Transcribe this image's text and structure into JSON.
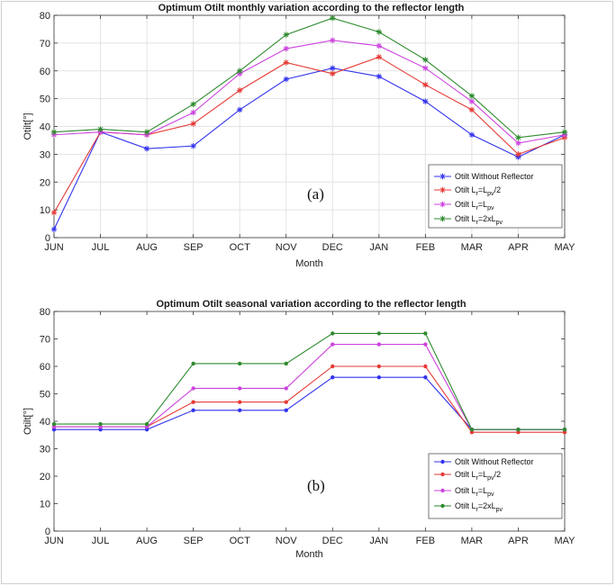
{
  "chart_data": [
    {
      "type": "line",
      "title": "Optimum Otilt monthly variation according to the reflector length",
      "xlabel": "Month",
      "ylabel": "Otilt[°]",
      "ylim": [
        0,
        80
      ],
      "yticks": [
        0,
        10,
        20,
        30,
        40,
        50,
        60,
        70,
        80
      ],
      "categories": [
        "JUN",
        "JUL",
        "AUG",
        "SEP",
        "OCT",
        "NOV",
        "DEC",
        "JAN",
        "FEB",
        "MAR",
        "APR",
        "MAY"
      ],
      "annotation": "(a)",
      "grid": true,
      "legend_position": "bottom-right",
      "series": [
        {
          "name": "Otilt Without Reflector",
          "color": "#3333ee",
          "values": [
            3,
            38,
            32,
            33,
            46,
            57,
            61,
            58,
            49,
            37,
            29,
            37
          ]
        },
        {
          "name": "Otilt Lr=Lpv/2",
          "color": "#e53935",
          "values": [
            9,
            38,
            37,
            41,
            53,
            63,
            59,
            65,
            55,
            46,
            30,
            36
          ]
        },
        {
          "name": "Otilt Lr=Lpv",
          "color": "#cc44dd",
          "values": [
            37,
            38,
            37,
            45,
            59,
            68,
            71,
            69,
            61,
            49,
            34,
            37
          ]
        },
        {
          "name": "Otilt Lr=2xLpv",
          "color": "#2e8b2e",
          "values": [
            38,
            39,
            38,
            48,
            60,
            73,
            79,
            74,
            64,
            51,
            36,
            38
          ]
        }
      ]
    },
    {
      "type": "line",
      "title": "Optimum Otilt seasonal variation according to the reflector length",
      "xlabel": "Month",
      "ylabel": "Otilt[°]",
      "ylim": [
        0,
        80
      ],
      "yticks": [
        0,
        10,
        20,
        30,
        40,
        50,
        60,
        70,
        80
      ],
      "categories": [
        "JUN",
        "JUL",
        "AUG",
        "SEP",
        "OCT",
        "NOV",
        "DEC",
        "JAN",
        "FEB",
        "MAR",
        "APR",
        "MAY"
      ],
      "annotation": "(b)",
      "grid": false,
      "legend_position": "bottom-right",
      "series": [
        {
          "name": "Otilt Without Reflector",
          "color": "#3333ee",
          "values": [
            37,
            37,
            37,
            44,
            44,
            44,
            56,
            56,
            56,
            37,
            37,
            37
          ]
        },
        {
          "name": "Otilt Lr=Lpv/2",
          "color": "#e53935",
          "values": [
            38,
            38,
            38,
            47,
            47,
            47,
            60,
            60,
            60,
            36,
            36,
            36
          ]
        },
        {
          "name": "Otilt Lr=Lpv",
          "color": "#cc44dd",
          "values": [
            38,
            38,
            38,
            52,
            52,
            52,
            68,
            68,
            68,
            37,
            37,
            37
          ]
        },
        {
          "name": "Otilt Lr=2xLpv",
          "color": "#2e8b2e",
          "values": [
            39,
            39,
            39,
            61,
            61,
            61,
            72,
            72,
            72,
            37,
            37,
            37
          ]
        }
      ]
    }
  ]
}
